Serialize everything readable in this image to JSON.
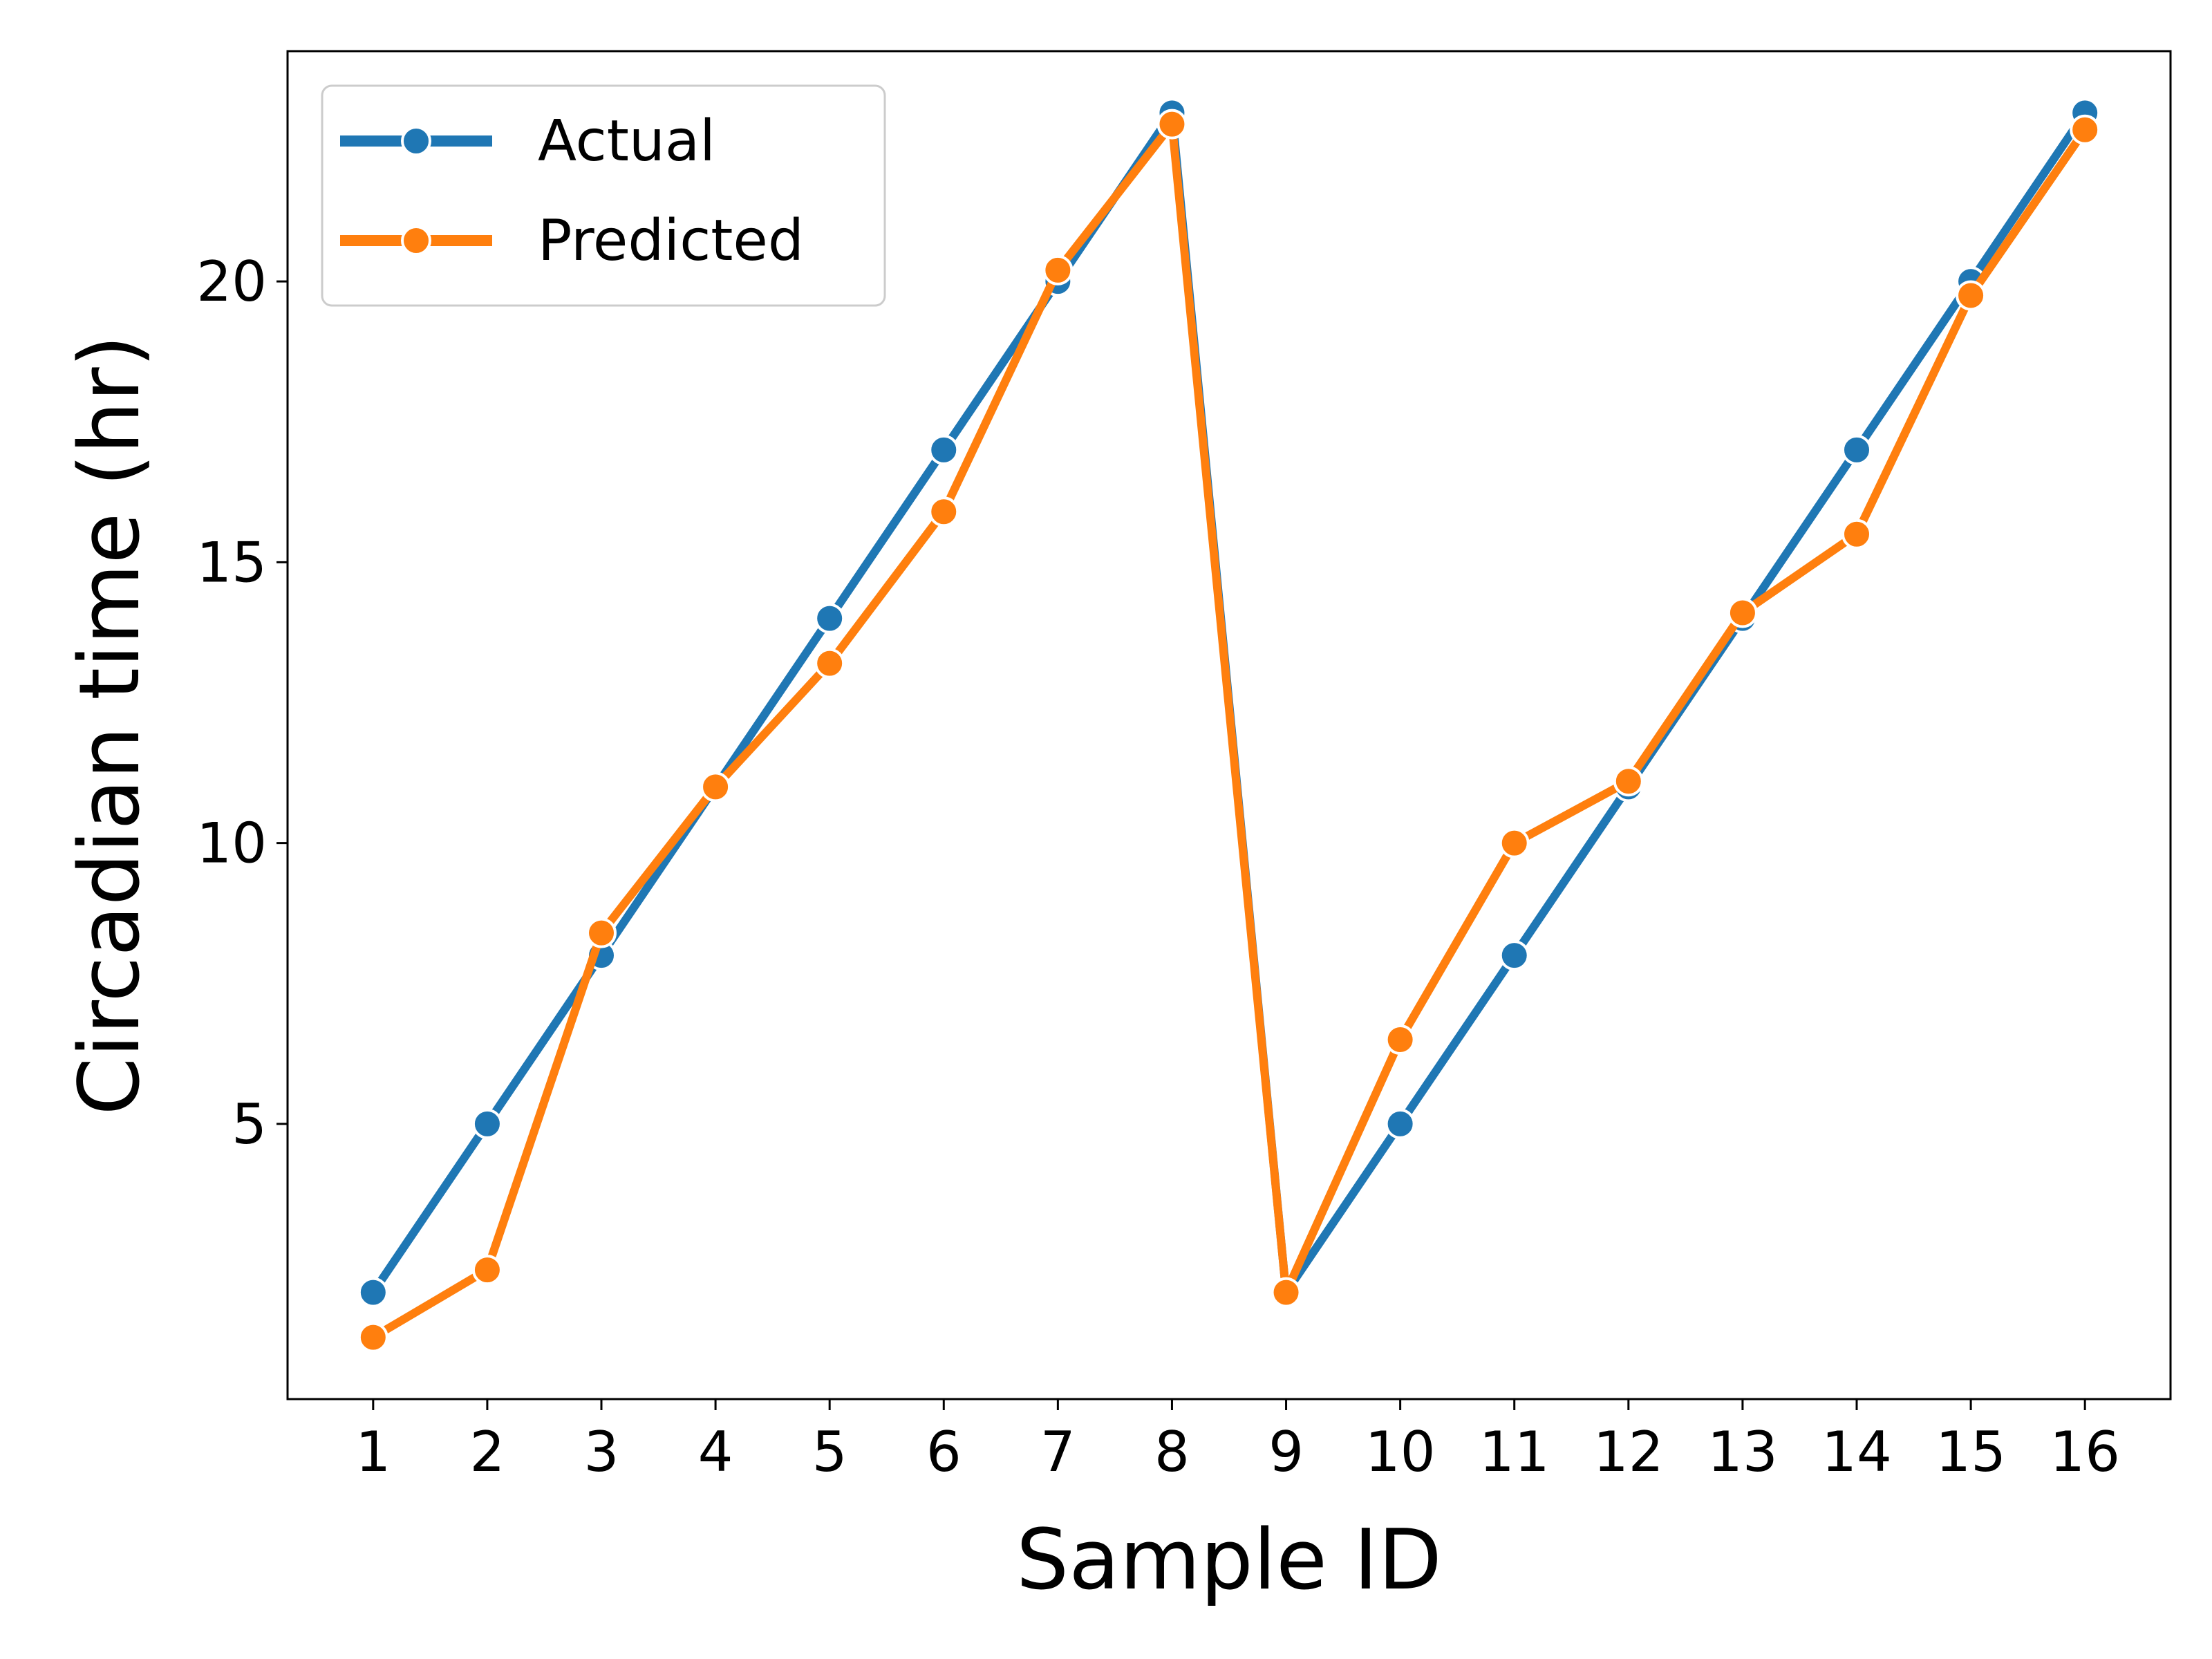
{
  "chart_data": {
    "type": "line",
    "title": "",
    "xlabel": "Sample ID",
    "ylabel": "Circadian time (hr)",
    "x": [
      1,
      2,
      3,
      4,
      5,
      6,
      7,
      8,
      9,
      10,
      11,
      12,
      13,
      14,
      15,
      16
    ],
    "xticks": [
      "1",
      "2",
      "3",
      "4",
      "5",
      "6",
      "7",
      "8",
      "9",
      "10",
      "11",
      "12",
      "13",
      "14",
      "15",
      "16"
    ],
    "yticks": [
      5,
      10,
      15,
      20
    ],
    "xlim": [
      0.25,
      16.75
    ],
    "ylim": [
      0.1,
      24.1
    ],
    "grid": false,
    "legend_position": "upper-left",
    "series": [
      {
        "name": "Actual",
        "color": "#1f77b4",
        "values": [
          2,
          5,
          8,
          11,
          14,
          17,
          20,
          23,
          2,
          5,
          8,
          11,
          14,
          17,
          20,
          23
        ]
      },
      {
        "name": "Predicted",
        "color": "#ff7f0e",
        "values": [
          1.2,
          2.4,
          8.4,
          11.0,
          13.2,
          15.9,
          20.2,
          22.8,
          2.0,
          6.5,
          10.0,
          11.1,
          14.1,
          15.5,
          19.75,
          22.7
        ]
      }
    ]
  }
}
